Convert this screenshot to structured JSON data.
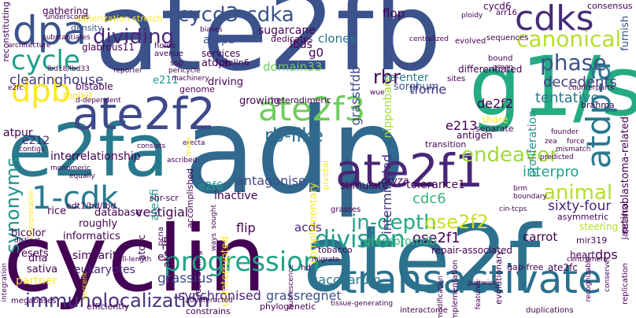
{
  "words": {
    "ate2fb": {
      "text": "ate2fb",
      "color": "#3b528b"
    },
    "adp": {
      "text": "adp",
      "color": "#31688e"
    },
    "cyclin": {
      "text": "cyclin",
      "color": "#440154"
    },
    "ate2f": {
      "text": "ate2f",
      "color": "#2c728e"
    },
    "e2fa": {
      "text": "e2fa",
      "color": "#2a788e"
    },
    "g1s": {
      "text": "g1/s",
      "color": "#25ab82"
    },
    "ate2f1": {
      "text": "ate2f1",
      "color": "#482677"
    },
    "ate2f2": {
      "text": "ate2f2",
      "color": "#3e4989"
    },
    "ate2f3": {
      "text": "ate2f3",
      "color": "#6ccd5a"
    },
    "transactivate": {
      "text": "transactivate",
      "color": "#2d708e"
    },
    "progression": {
      "text": "progression",
      "color": "#20a486"
    },
    "dpa": {
      "text": "dpa",
      "color": "#3b528b"
    },
    "cdks": {
      "text": "cdks",
      "color": "#472c7a"
    },
    "dpb": {
      "text": "dpb",
      "color": "#fde725"
    },
    "onecdk": {
      "text": "1-cdk",
      "color": "#2a788e"
    },
    "cycle": {
      "text": "cycle",
      "color": "#1f9e89"
    },
    "cycd3": {
      "text": "cycd3-cdka",
      "color": "#3b528b"
    },
    "dividing": {
      "text": "dividing",
      "color": "#482677"
    },
    "atdpa_v": {
      "text": "atdp-a",
      "color": "#2a788e"
    },
    "canonical": {
      "text": "canonical",
      "color": "#b5de2b"
    },
    "rblike": {
      "text": "rb-like",
      "color": "#2d708e"
    },
    "phase": {
      "text": "phase",
      "color": "#3b528b"
    },
    "division": {
      "text": "division",
      "color": "#1f9e89"
    },
    "indepth": {
      "text": "in-depth",
      "color": "#22a884"
    },
    "animal": {
      "text": "animal",
      "color": "#b5de2b"
    },
    "endeavor": {
      "text": "endeavor",
      "color": "#a0da39"
    },
    "synonyms": {
      "text": "synonyms",
      "color": "#21918c"
    },
    "immuno": {
      "text": "immunolocalization",
      "color": "#46327e"
    },
    "rbr": {
      "text": "rbr",
      "color": "#440154"
    },
    "ose2f2": {
      "text": "ose2f2",
      "color": "#cae11f"
    },
    "clearinghouse": {
      "text": "clearinghouse",
      "color": "#443983"
    },
    "decedents": {
      "text": "decedents",
      "color": "#433e85"
    },
    "tentative": {
      "text": "tentative",
      "color": "#2a788e"
    },
    "grassius": {
      "text": "grassius",
      "color": "#3e4989"
    },
    "grassregnet": {
      "text": "grassregnet",
      "color": "#3b528b"
    },
    "synchronised": {
      "text": "synchronised",
      "color": "#482475"
    },
    "saccharum": {
      "text": "saccharum",
      "color": "#2a788e"
    },
    "vestigial": {
      "text": "vestigial",
      "color": "#440154"
    },
    "interpro": {
      "text": "interpro",
      "color": "#1f9e89"
    },
    "sixtyfour": {
      "text": "sixty-four",
      "color": "#482677"
    },
    "ose2f1": {
      "text": "ose2f1",
      "color": "#440154"
    },
    "cdc6": {
      "text": "cdc6",
      "color": "#35b779"
    },
    "tfome": {
      "text": "tfome",
      "color": "#46327e"
    },
    "e2f6": {
      "text": "e2f6",
      "color": "#1f9e89"
    },
    "antagonise": {
      "text": "antagonise",
      "color": "#3e4989"
    },
    "atdpb": {
      "text": "atdpb",
      "color": "#440154"
    },
    "flip": {
      "text": "flip",
      "color": "#440154"
    },
    "acds": {
      "text": "acds",
      "color": "#482677"
    },
    "similarity": {
      "text": "similarity",
      "color": "#440154"
    },
    "eukaryotes": {
      "text": "eukaryotes",
      "color": "#482677"
    },
    "flop": {
      "text": "flop",
      "color": "#440154"
    },
    "nipponbare": {
      "text": "nipponbare",
      "color": "#a0da39"
    },
    "reenter": {
      "text": "re-enter",
      "color": "#2a788e"
    },
    "sorghum": {
      "text": "sorghum",
      "color": "#3b528b"
    },
    "domain33": {
      "text": "domain33",
      "color": "#6ccd5a"
    },
    "g0": {
      "text": "g0",
      "color": "#440154"
    },
    "clones": {
      "text": "clones",
      "color": "#2a788e"
    },
    "lbds": {
      "text": "lbds",
      "color": "#440154"
    },
    "atdpb2": {
      "text": "atdpb",
      "color": "#3b528b"
    },
    "sugarcane": {
      "text": "sugarcane",
      "color": "#440154"
    },
    "dedicates": {
      "text": "dedicates",
      "color": "#440154"
    },
    "services": {
      "text": "services",
      "color": "#440154"
    },
    "glabrous11": {
      "text": "glabrous11",
      "color": "#440154"
    },
    "e211": {
      "text": "e211",
      "color": "#1f9e89"
    },
    "gathering": {
      "text": "gathering",
      "color": "#440154"
    },
    "dimerization": {
      "text": "dimerization stretch",
      "color": "#fde725"
    },
    "density": {
      "text": "density",
      "color": "#3b528b"
    },
    "cycd6": {
      "text": "cycd6",
      "color": "#440154"
    },
    "differentiated": {
      "text": "differentiated",
      "color": "#440154"
    },
    "consensus": {
      "text": "consensus",
      "color": "#440154"
    },
    "furnish": {
      "text": "furnish",
      "color": "#3b528b"
    },
    "atpur": {
      "text": "atpur",
      "color": "#440154"
    },
    "interrelationship": {
      "text": "interrelationship",
      "color": "#440154"
    },
    "e212": {
      "text": "e212",
      "color": "#482677"
    },
    "e213": {
      "text": "e213",
      "color": "#440154"
    },
    "de2f2": {
      "text": "de2f2",
      "color": "#440154"
    },
    "inactive": {
      "text": "inactive",
      "color": "#440154"
    },
    "ate2fi": {
      "text": "ate2fi",
      "color": "#21918c"
    },
    "ate2fi2": {
      "text": "ate2fi",
      "color": "#440154"
    },
    "intermingled": {
      "text": "intermingled",
      "color": "#46327e"
    },
    "grasstfdb": {
      "text": "grasstfdb",
      "color": "#3e4989"
    },
    "oryza": {
      "text": "oryza",
      "color": "#440154"
    },
    "tolerance1": {
      "text": "tolerance1",
      "color": "#440154"
    },
    "stimulate": {
      "text": "stimulate",
      "color": "#440154"
    },
    "rice": {
      "text": "rice",
      "color": "#440154"
    },
    "database": {
      "text": "database",
      "color": "#440154"
    },
    "bicolor": {
      "text": "bicolor",
      "color": "#440154"
    },
    "informatics": {
      "text": "informatics",
      "color": "#440154"
    },
    "resets": {
      "text": "resets",
      "color": "#440154"
    },
    "roughly": {
      "text": "roughly",
      "color": "#440154"
    },
    "edt1": {
      "text": "edt1/hd/lbd",
      "color": "#440154"
    },
    "dna": {
      "text": "dna",
      "color": "#440154"
    },
    "sativa": {
      "text": "sativa",
      "color": "#440154"
    },
    "partner": {
      "text": "partner",
      "color": "#fde725"
    },
    "carrot": {
      "text": "carrot",
      "color": "#440154"
    },
    "dps": {
      "text": "dps",
      "color": "#440154"
    },
    "heart": {
      "text": "heart",
      "color": "#440154"
    },
    "ate2fc": {
      "text": "ate2fc",
      "color": "#440154"
    },
    "grasspromdb": {
      "text": "grasspromdb",
      "color": "#35b779"
    },
    "repair": {
      "text": "repair-associated",
      "color": "#440154"
    },
    "proliferation": {
      "text": "proliferation",
      "color": "#21918c"
    },
    "retinoblastoma": {
      "text": "retinoblastoma-related",
      "color": "#440154"
    },
    "shr": {
      "text": "shr-scr",
      "color": "#440154"
    },
    "tobacco": {
      "text": "tobacco",
      "color": "#440154"
    },
    "transition": {
      "text": "transition",
      "color": "#440154"
    },
    "growing": {
      "text": "growing",
      "color": "#440154"
    },
    "driving": {
      "text": "driving",
      "color": "#440154"
    },
    "heterodimeric": {
      "text": "heterodimeric",
      "color": "#440154"
    },
    "share": {
      "text": "share",
      "color": "#fde725"
    },
    "separate": {
      "text": "separate",
      "color": "#440154"
    },
    "antigen": {
      "text": "antigen",
      "color": "#440154"
    },
    "cyclin6": {
      "text": "cyclin6",
      "color": "#440154"
    },
    "genome": {
      "text": "genome",
      "color": "#440154"
    },
    "reconstituting": {
      "text": "reconstituting",
      "color": "#440154"
    },
    "bistable": {
      "text": "bistable",
      "color": "#440154"
    },
    "toolkit": {
      "text": "toolkit",
      "color": "#fde725"
    },
    "steering": {
      "text": "steering",
      "color": "#b5de2b"
    },
    "brahma": {
      "text": "brahma",
      "color": "#440154"
    },
    "interactome": {
      "text": "interactome",
      "color": "#440154"
    },
    "gapfree": {
      "text": "gap-free",
      "color": "#440154"
    },
    "evolutionary": {
      "text": "evolutionary",
      "color": "#440154"
    },
    "pivotal": {
      "text": "pivotal",
      "color": "#fde725"
    },
    "restraining": {
      "text": "restraining",
      "color": "#440154"
    },
    "uninterrupted": {
      "text": "uninterrupted",
      "color": "#fde725"
    },
    "complementary": {
      "text": "complementary",
      "color": "#fde725"
    },
    "constrains": {
      "text": "constrains",
      "color": "#440154"
    },
    "phylogenetic": {
      "text": "phylogenetic",
      "color": "#440154"
    },
    "efficiently": {
      "text": "efficiently",
      "color": "#440154"
    },
    "mir319": {
      "text": "mir319",
      "color": "#440154"
    },
    "asymmetric": {
      "text": "asymmetric",
      "color": "#440154"
    },
    "japonica": {
      "text": "japonica",
      "color": "#440154"
    },
    "replication": {
      "text": "replication",
      "color": "#440154"
    },
    "machinery": {
      "text": "machinery",
      "color": "#440154"
    },
    "accomplished": {
      "text": "accomplished",
      "color": "#440154"
    },
    "pcna": {
      "text": "pcna",
      "color": "#440154"
    },
    "atcdc": {
      "text": "atcdc",
      "color": "#440154"
    },
    "e2l": {
      "text": "e2l",
      "color": "#440154"
    },
    "implementation": {
      "text": "implementation",
      "color": "#440154"
    },
    "duplications": {
      "text": "duplications",
      "color": "#440154"
    },
    "megabases": {
      "text": "megabases",
      "color": "#440154"
    },
    "counteracted": {
      "text": "counteracted",
      "color": "#440154"
    },
    "centralized": {
      "text": "centralized",
      "color": "#440154"
    },
    "evolved": {
      "text": "evolved",
      "color": "#440154"
    },
    "ploidy": {
      "text": "ploidy",
      "color": "#440154"
    },
    "sequences": {
      "text": "sequences",
      "color": "#440154"
    },
    "arr16": {
      "text": "arr16",
      "color": "#440154"
    },
    "bound": {
      "text": "bound",
      "color": "#440154"
    },
    "green": {
      "text": "green",
      "color": "#440154"
    },
    "sites": {
      "text": "sites",
      "color": "#440154"
    },
    "ssp": {
      "text": "ssp",
      "color": "#440154"
    },
    "pericycle": {
      "text": "pericycle",
      "color": "#440154"
    },
    "holds": {
      "text": "holds",
      "color": "#440154"
    },
    "avenue": {
      "text": "avenue",
      "color": "#440154"
    },
    "biases": {
      "text": "biases",
      "color": "#440154"
    },
    "underscores": {
      "text": "underscores",
      "color": "#440154"
    },
    "substantiates": {
      "text": "substantiates",
      "color": "#440154"
    },
    "architecture": {
      "text": "architecture",
      "color": "#440154"
    },
    "lbd18": {
      "text": "lbd18/lbd33",
      "color": "#440154"
    },
    "e2fc": {
      "text": "e2fc",
      "color": "#440154"
    },
    "ddependent": {
      "text": "d-dependent",
      "color": "#440154"
    },
    "reporter": {
      "text": "reporter",
      "color": "#440154"
    },
    "erecta": {
      "text": "erecta",
      "color": "#440154"
    },
    "consists": {
      "text": "consists",
      "color": "#440154"
    },
    "ascribed": {
      "text": "ascribed",
      "color": "#440154"
    },
    "contigs": {
      "text": "contigs",
      "color": "#440154"
    },
    "monomeric": {
      "text": "monomeric",
      "color": "#440154"
    },
    "equally": {
      "text": "equally",
      "color": "#440154"
    },
    "distinct": {
      "text": "distinct",
      "color": "#440154"
    },
    "grasses": {
      "text": "grasses",
      "color": "#440154"
    },
    "migrate": {
      "text": "migrate",
      "color": "#440154"
    },
    "tissue": {
      "text": "tissue-generating",
      "color": "#440154"
    },
    "pairwise": {
      "text": "pairwise",
      "color": "#440154"
    },
    "conserve": {
      "text": "conserve",
      "color": "#440154"
    },
    "cintcps": {
      "text": "cin-tcps",
      "color": "#440154"
    },
    "boundary": {
      "text": "boundary",
      "color": "#440154"
    },
    "brm": {
      "text": "brm",
      "color": "#440154"
    },
    "predicted": {
      "text": "predicted",
      "color": "#440154"
    },
    "mismatch": {
      "text": "mismatch",
      "color": "#440154"
    },
    "founder": {
      "text": "founder",
      "color": "#440154"
    },
    "zea": {
      "text": "zea",
      "color": "#440154"
    },
    "force": {
      "text": "force",
      "color": "#440154"
    },
    "counterparts": {
      "text": "counterparts",
      "color": "#440154"
    },
    "centromere": {
      "text": "centromere",
      "color": "#440154"
    },
    "wue": {
      "text": "wue",
      "color": "#440154"
    },
    "hullength": {
      "text": "hull-length",
      "color": "#440154"
    },
    "percent": {
      "text": "percent",
      "color": "#fde725"
    },
    "integration": {
      "text": "integration",
      "color": "#440154"
    },
    "modification": {
      "text": "modification",
      "color": "#440154"
    },
    "fluorescence": {
      "text": "fluorescence",
      "color": "#440154"
    },
    "sought": {
      "text": "sought",
      "color": "#440154"
    },
    "ways": {
      "text": "ways",
      "color": "#440154"
    },
    "maps": {
      "text": "maps",
      "color": "#fde725"
    },
    "recognizable": {
      "text": "recognizable",
      "color": "#440154"
    },
    "features": {
      "text": "features",
      "color": "#440154"
    },
    "hd": {
      "text": "hd",
      "color": "#440154"
    },
    "interpretation": {
      "text": "interpretation",
      "color": "#fde725"
    }
  }
}
